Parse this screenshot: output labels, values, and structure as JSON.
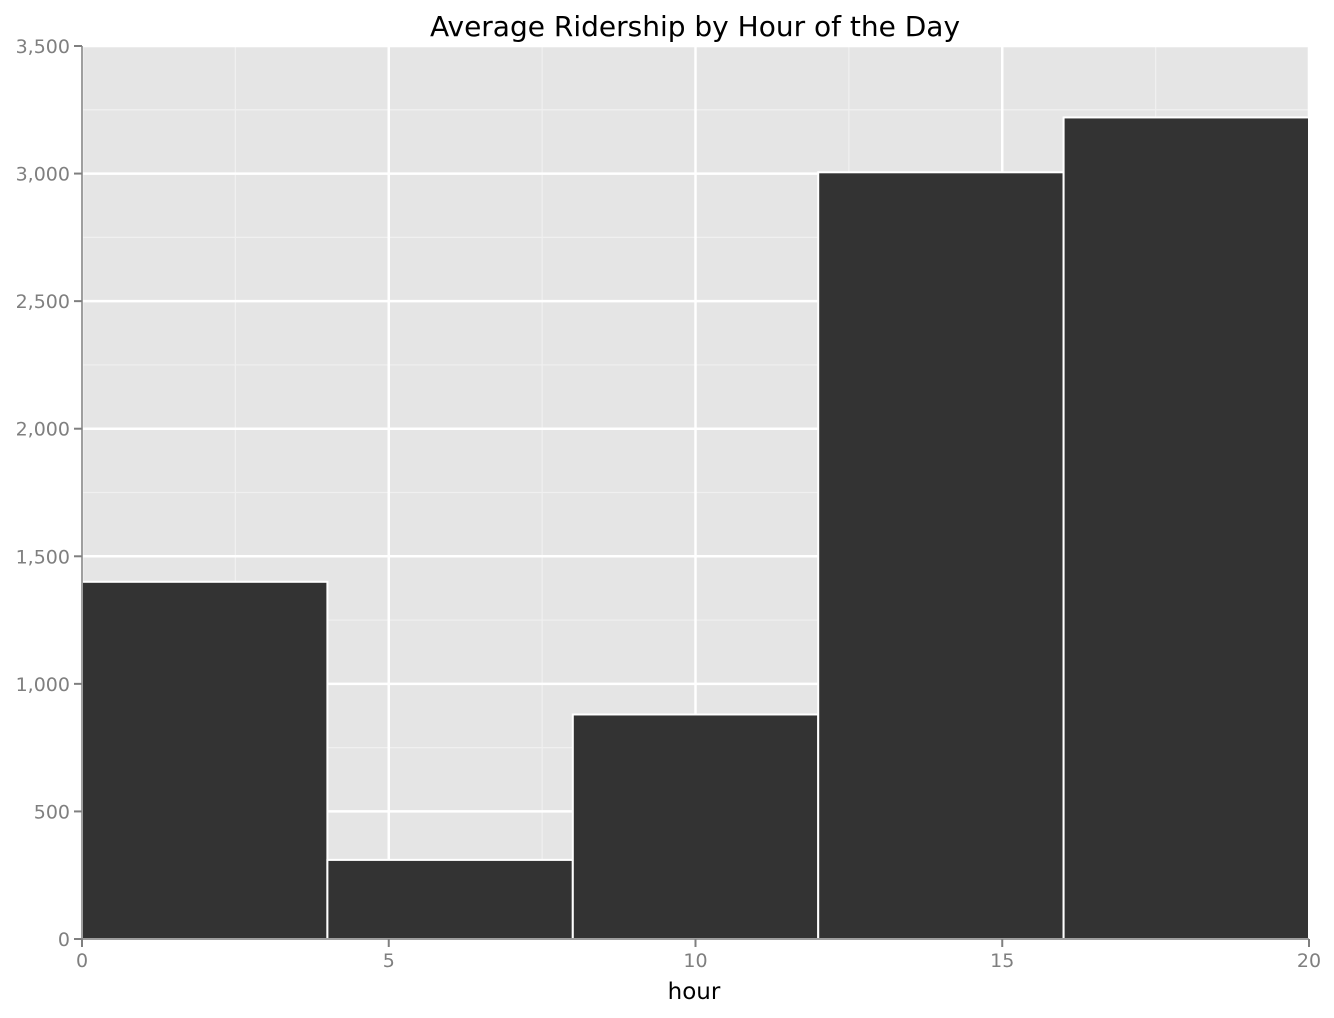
{
  "chart_data": {
    "type": "bar",
    "title": "Average Ridership by Hour of the Day",
    "xlabel": "hour",
    "ylabel": "",
    "bins": [
      {
        "x_start": 0,
        "x_end": 4,
        "value": 1400
      },
      {
        "x_start": 4,
        "x_end": 8,
        "value": 310
      },
      {
        "x_start": 8,
        "x_end": 12,
        "value": 880
      },
      {
        "x_start": 12,
        "x_end": 16,
        "value": 3005
      },
      {
        "x_start": 16,
        "x_end": 20,
        "value": 3220
      }
    ],
    "xlim": [
      0,
      20
    ],
    "ylim": [
      0,
      3500
    ],
    "x_ticks": [
      0,
      5,
      10,
      15,
      20
    ],
    "x_tick_labels": [
      "0",
      "5",
      "10",
      "15",
      "20"
    ],
    "y_ticks": [
      0,
      500,
      1000,
      1500,
      2000,
      2500,
      3000,
      3500
    ],
    "y_tick_labels": [
      "0",
      "500",
      "1,000",
      "1,500",
      "2,000",
      "2,500",
      "3,000",
      "3,500"
    ],
    "grid": true,
    "legend": "none",
    "colors": {
      "bar_fill": "#333333",
      "bar_edge": "#ffffff",
      "panel_background": "#e5e5e5",
      "grid_major": "#ffffff",
      "grid_minor": "#f0f0f0",
      "tick_text": "#7f7f7f",
      "tick_mark": "#7f7f7f"
    }
  }
}
